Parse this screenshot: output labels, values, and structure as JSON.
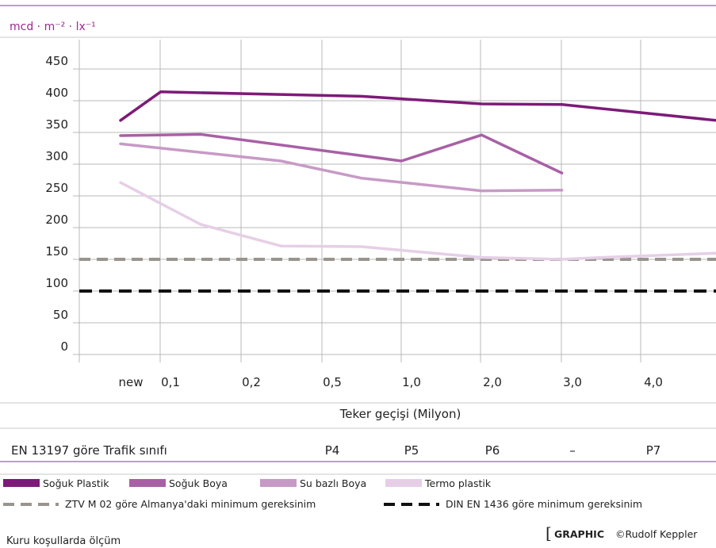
{
  "chart_data": {
    "type": "line",
    "ylabel": "mcd · m⁻² · lx⁻¹",
    "xlabel": "Teker geçişi (Milyon)",
    "ylim": [
      0,
      450
    ],
    "yticks": [
      0,
      50,
      100,
      150,
      200,
      250,
      300,
      350,
      400,
      450
    ],
    "x_tick_labels": [
      "new",
      "0,1",
      "0,2",
      "0,5",
      "1,0",
      "2,0",
      "3,0",
      "4,0"
    ],
    "grid": true,
    "series": [
      {
        "name": "Soğuk Plastik",
        "color": "#7d1a78",
        "points": [
          [
            0,
            369
          ],
          [
            0.5,
            414
          ],
          [
            3,
            407
          ],
          [
            4.5,
            395
          ],
          [
            5.5,
            394
          ],
          [
            7.5,
            368
          ]
        ]
      },
      {
        "name": "Soğuk Boya",
        "color": "#a860a5",
        "points": [
          [
            0,
            345
          ],
          [
            1,
            347
          ],
          [
            3.5,
            305
          ],
          [
            4.5,
            346
          ],
          [
            5.5,
            286
          ]
        ]
      },
      {
        "name": "Su bazlı Boya",
        "color": "#c79ac6",
        "points": [
          [
            0,
            332
          ],
          [
            2,
            305
          ],
          [
            3,
            278
          ],
          [
            4.5,
            258
          ],
          [
            5.5,
            259
          ]
        ]
      },
      {
        "name": "Termo plastik",
        "color": "#e6cfe6",
        "points": [
          [
            0,
            271
          ],
          [
            1,
            205
          ],
          [
            2,
            171
          ],
          [
            3,
            170
          ],
          [
            4.5,
            153
          ],
          [
            5.5,
            150
          ],
          [
            6,
            153
          ],
          [
            7.5,
            160
          ]
        ]
      }
    ],
    "reference_lines": [
      {
        "name": "ZTV M 02 göre Almanya'daki minimum gereksinim",
        "value": 150,
        "color": "#9a948f"
      },
      {
        "name": "DIN EN 1436 göre minimum gereksinim",
        "value": 100,
        "color": "#111111"
      }
    ],
    "traffic_class": {
      "label": "EN 13197 göre Trafik  sınıfı",
      "values": [
        "",
        "",
        "",
        "P4",
        "P5",
        "P6",
        "–",
        "P7"
      ]
    },
    "note": "Kuru koşullarda ölçüm",
    "credit": {
      "bracket": "[",
      "strong": "GRAPHIC",
      "text": "©Rudolf Keppler"
    }
  },
  "colors": {
    "accent": "#9b2b8f",
    "grid": "#b8b8b8",
    "rule": "#9b2b8f"
  }
}
